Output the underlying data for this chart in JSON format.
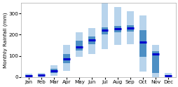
{
  "months": [
    "Jan",
    "Feb",
    "Mar",
    "Apr",
    "May",
    "Jun",
    "Jul",
    "Aug",
    "Sep",
    "Oct",
    "Nov",
    "Dec"
  ],
  "min_vals": [
    0,
    0,
    5,
    30,
    95,
    110,
    130,
    150,
    155,
    25,
    0,
    0
  ],
  "max_vals": [
    15,
    20,
    55,
    150,
    210,
    230,
    360,
    330,
    310,
    290,
    150,
    20
  ],
  "q25_vals": [
    2,
    5,
    20,
    65,
    125,
    155,
    200,
    210,
    215,
    95,
    20,
    2
  ],
  "q75_vals": [
    8,
    12,
    40,
    110,
    170,
    190,
    235,
    240,
    245,
    220,
    120,
    8
  ],
  "median_vals": [
    5,
    8,
    28,
    85,
    140,
    175,
    220,
    228,
    232,
    165,
    110,
    5
  ],
  "color_minmax": "#b8d4ec",
  "color_iqr": "#4d8fc4",
  "color_median": "#0000cc",
  "ylim": [
    0,
    350
  ],
  "yticks": [
    0,
    100,
    200,
    300
  ],
  "ylabel": "Monthly Rainfall (mm)",
  "background_color": "#ffffff",
  "bar_width": 0.55
}
